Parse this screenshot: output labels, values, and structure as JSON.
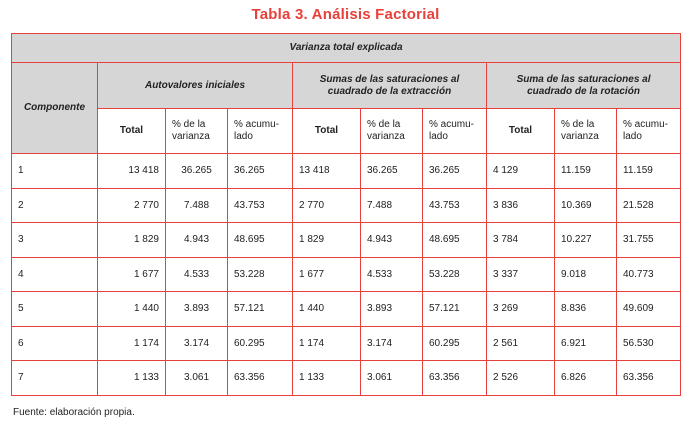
{
  "title": "Tabla 3. Análisis Factorial",
  "table": {
    "main_header": "Varianza total explicada",
    "component_header": "Componente",
    "groups": [
      "Autovalores iniciales",
      "Sumas de las saturaciones al cuadrado de la extracción",
      "Suma de las saturaciones al cuadrado de la rotación"
    ],
    "sub_headers": {
      "total": "Total",
      "varianza": "% de la varianza",
      "acumulado": "% acumu-lado"
    },
    "rows": [
      {
        "componente": "1",
        "a_total": "13 418",
        "a_var": "36.265",
        "a_acum": "36.265",
        "e_total": "13 418",
        "e_var": "36.265",
        "e_acum": "36.265",
        "r_total": "4 129",
        "r_var": "11.159",
        "r_acum": "11.159"
      },
      {
        "componente": "2",
        "a_total": "2 770",
        "a_var": "7.488",
        "a_acum": "43.753",
        "e_total": "2 770",
        "e_var": "7.488",
        "e_acum": "43.753",
        "r_total": "3 836",
        "r_var": "10.369",
        "r_acum": "21.528"
      },
      {
        "componente": "3",
        "a_total": "1 829",
        "a_var": "4.943",
        "a_acum": "48.695",
        "e_total": "1 829",
        "e_var": "4.943",
        "e_acum": "48.695",
        "r_total": "3 784",
        "r_var": "10.227",
        "r_acum": "31.755"
      },
      {
        "componente": "4",
        "a_total": "1 677",
        "a_var": "4.533",
        "a_acum": "53.228",
        "e_total": "1 677",
        "e_var": "4.533",
        "e_acum": "53.228",
        "r_total": "3 337",
        "r_var": "9.018",
        "r_acum": "40.773"
      },
      {
        "componente": "5",
        "a_total": "1 440",
        "a_var": "3.893",
        "a_acum": "57.121",
        "e_total": "1 440",
        "e_var": "3.893",
        "e_acum": "57.121",
        "r_total": "3 269",
        "r_var": "8.836",
        "r_acum": "49.609"
      },
      {
        "componente": "6",
        "a_total": "1 174",
        "a_var": "3.174",
        "a_acum": "60.295",
        "e_total": "1 174",
        "e_var": "3.174",
        "e_acum": "60.295",
        "r_total": "2 561",
        "r_var": "6.921",
        "r_acum": "56.530"
      },
      {
        "componente": "7",
        "a_total": "1 133",
        "a_var": "3.061",
        "a_acum": "63.356",
        "e_total": "1 133",
        "e_var": "3.061",
        "e_acum": "63.356",
        "r_total": "2 526",
        "r_var": "6.826",
        "r_acum": "63.356"
      }
    ]
  },
  "footer": "Fuente: elaboración propia.",
  "colors": {
    "accent": "#e8403a",
    "header_bg": "#d6d6d6"
  }
}
